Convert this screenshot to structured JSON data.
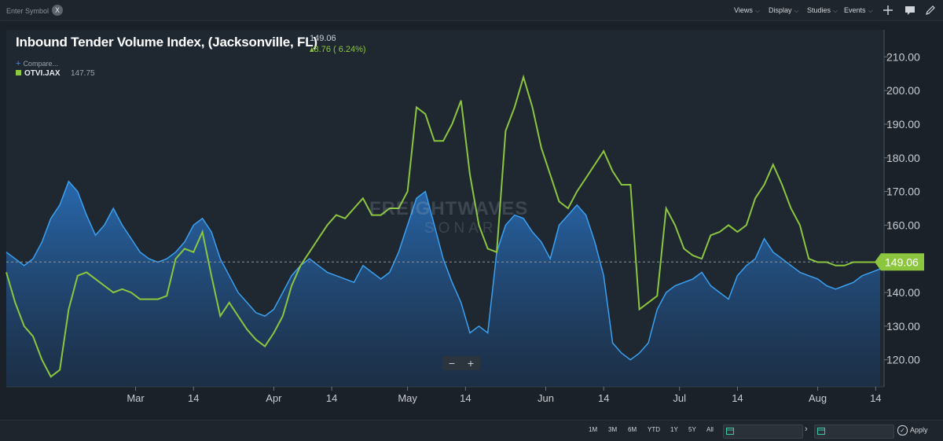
{
  "toolbar": {
    "symbol_placeholder": "Enter Symbol",
    "clear_label": "X",
    "menus": [
      "Views",
      "Display",
      "Studies",
      "Events"
    ]
  },
  "header": {
    "title": "Inbound Tender Volume Index, (Jacksonville, FL)",
    "price": "149.06",
    "change": "8.76 ( 6.24%)",
    "compare_label": "Compare...",
    "legend_symbol": "OTVI.JAX",
    "legend_value": "147.75"
  },
  "watermark": {
    "line1": "FREIGHTWAVES",
    "line2": "SONAR"
  },
  "zoom": {
    "minus": "−",
    "plus": "+"
  },
  "bottom": {
    "ranges": [
      "1M",
      "3M",
      "6M",
      "YTD",
      "1Y",
      "5Y",
      "All"
    ],
    "apply": "Apply"
  },
  "colors": {
    "series_green": "#8cc63f",
    "series_blue": "#3aa0f0",
    "background": "#1f2731"
  },
  "chart_data": {
    "type": "line",
    "title": "Inbound Tender Volume Index, (Jacksonville, FL)",
    "x_tick_labels": [
      "Mar",
      "14",
      "Apr",
      "14",
      "May",
      "14",
      "Jun",
      "14",
      "Jul",
      "14",
      "Aug",
      "14"
    ],
    "x_tick_days": [
      29,
      42,
      60,
      73,
      90,
      103,
      121,
      134,
      151,
      164,
      182,
      195
    ],
    "y_tick_labels": [
      "120.00",
      "130.00",
      "140.00",
      "150.00",
      "160.00",
      "170.00",
      "180.00",
      "190.00",
      "200.00",
      "210.00"
    ],
    "ylim": [
      112,
      218
    ],
    "xlim": [
      0,
      196
    ],
    "current_value_label": "149.06",
    "reference_line": 149.06,
    "series": [
      {
        "name": "OTVI.JAX",
        "color": "#8cc63f",
        "x": [
          0,
          2,
          4,
          6,
          8,
          10,
          12,
          14,
          16,
          18,
          20,
          22,
          24,
          26,
          28,
          30,
          32,
          34,
          36,
          38,
          40,
          42,
          44,
          46,
          48,
          50,
          52,
          54,
          56,
          58,
          60,
          62,
          64,
          66,
          68,
          70,
          72,
          74,
          76,
          78,
          80,
          82,
          84,
          86,
          88,
          90,
          92,
          94,
          96,
          98,
          100,
          102,
          104,
          106,
          108,
          110,
          112,
          114,
          116,
          118,
          120,
          122,
          124,
          126,
          128,
          130,
          132,
          134,
          136,
          138,
          140,
          142,
          144,
          146,
          148,
          150,
          152,
          154,
          156,
          158,
          160,
          162,
          164,
          166,
          168,
          170,
          172,
          174,
          176,
          178,
          180,
          182,
          184,
          186,
          188,
          190,
          192,
          194,
          196
        ],
        "values": [
          146,
          137,
          130,
          127,
          120,
          115,
          117,
          135,
          145,
          146,
          144,
          142,
          140,
          141,
          140,
          138,
          138,
          138,
          139,
          150,
          153,
          152,
          158,
          145,
          133,
          137,
          133,
          129,
          126,
          124,
          128,
          133,
          142,
          148,
          152,
          156,
          160,
          163,
          162,
          165,
          168,
          163,
          163,
          165,
          165,
          170,
          195,
          193,
          185,
          185,
          190,
          197,
          175,
          160,
          153,
          152,
          188,
          195,
          204,
          195,
          183,
          175,
          167,
          165,
          170,
          174,
          178,
          182,
          176,
          172,
          172,
          135,
          137,
          139,
          165,
          160,
          153,
          151,
          150,
          157,
          158,
          160,
          158,
          160,
          168,
          172,
          178,
          172,
          165,
          160,
          150,
          149,
          149,
          148,
          148,
          149,
          149,
          149,
          149
        ]
      },
      {
        "name": "",
        "color": "#3aa0f0",
        "x": [
          0,
          2,
          4,
          6,
          8,
          10,
          12,
          14,
          16,
          18,
          20,
          22,
          24,
          26,
          28,
          30,
          32,
          34,
          36,
          38,
          40,
          42,
          44,
          46,
          48,
          50,
          52,
          54,
          56,
          58,
          60,
          62,
          64,
          66,
          68,
          70,
          72,
          74,
          76,
          78,
          80,
          82,
          84,
          86,
          88,
          90,
          92,
          94,
          96,
          98,
          100,
          102,
          104,
          106,
          108,
          110,
          112,
          114,
          116,
          118,
          120,
          122,
          124,
          126,
          128,
          130,
          132,
          134,
          136,
          138,
          140,
          142,
          144,
          146,
          148,
          150,
          152,
          154,
          156,
          158,
          160,
          162,
          164,
          166,
          168,
          170,
          172,
          174,
          176,
          178,
          180,
          182,
          184,
          186,
          188,
          190,
          192,
          194,
          196
        ],
        "values": [
          152,
          150,
          148,
          150,
          155,
          162,
          166,
          173,
          170,
          163,
          157,
          160,
          165,
          160,
          156,
          152,
          150,
          149,
          150,
          152,
          155,
          160,
          162,
          158,
          150,
          145,
          140,
          137,
          134,
          133,
          135,
          140,
          145,
          148,
          150,
          148,
          146,
          145,
          144,
          143,
          148,
          146,
          144,
          146,
          152,
          160,
          168,
          170,
          160,
          150,
          143,
          137,
          128,
          130,
          128,
          152,
          160,
          163,
          162,
          158,
          155,
          150,
          160,
          163,
          166,
          163,
          155,
          145,
          125,
          122,
          120,
          122,
          125,
          135,
          140,
          142,
          143,
          144,
          146,
          142,
          140,
          138,
          145,
          148,
          150,
          156,
          152,
          150,
          148,
          146,
          145,
          144,
          142,
          141,
          142,
          143,
          145,
          146,
          147
        ]
      }
    ]
  }
}
